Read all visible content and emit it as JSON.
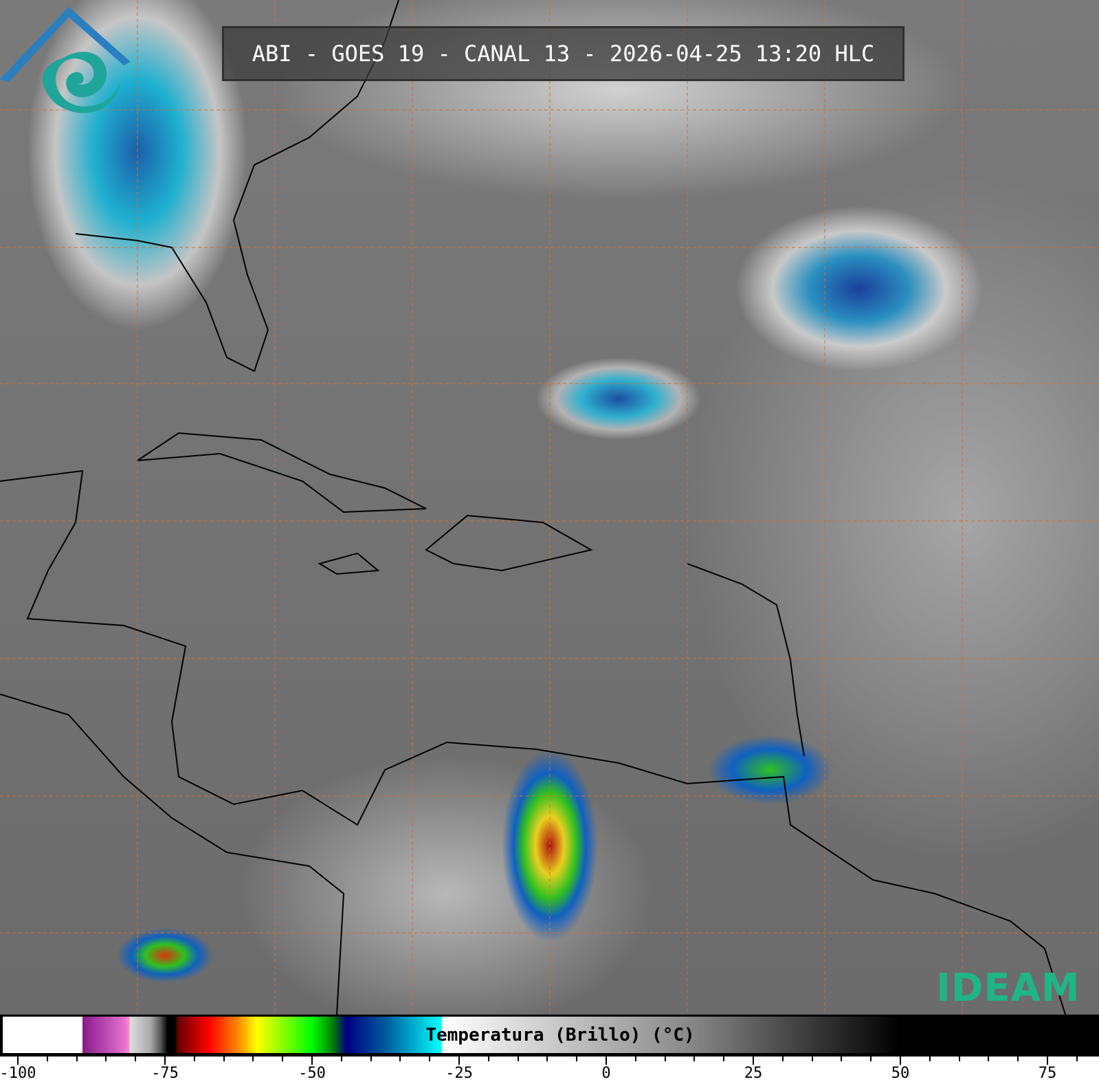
{
  "title": "ABI - GOES 19 - CANAL 13 - 2026-04-25 13:20 HLC",
  "logo": {
    "text": "IDEAM",
    "color": "#1fb585"
  },
  "colorbar": {
    "label": "Temperatura (Brillo) (°C)",
    "range": [
      -100,
      85
    ],
    "tick_labels": [
      "-100",
      "-75",
      "-50",
      "-25",
      "0",
      "25",
      "50",
      "75"
    ],
    "tick_values": [
      -100,
      -75,
      -50,
      -25,
      0,
      25,
      50,
      75
    ],
    "minor_tick_step": 5
  },
  "grid": {
    "color": "#d07030",
    "style": "dashed"
  }
}
